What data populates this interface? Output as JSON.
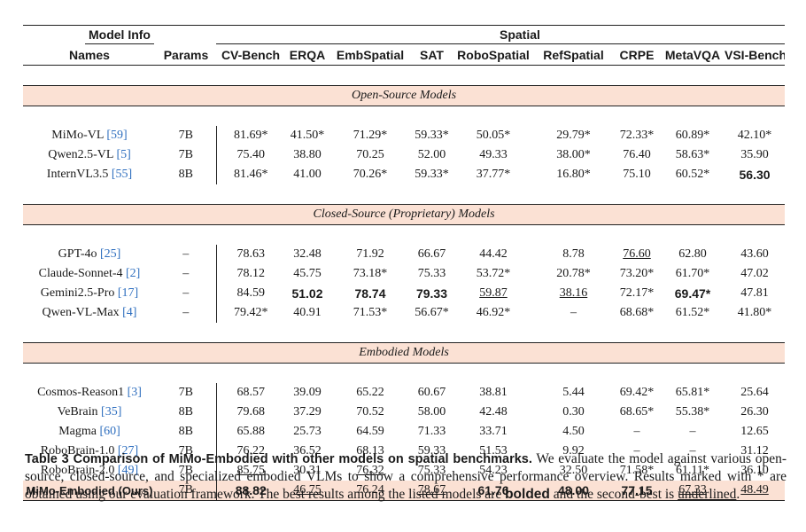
{
  "table": {
    "group_headers": {
      "model_info": "Model Info",
      "spatial": "Spatial"
    },
    "columns": [
      "Names",
      "Params",
      "CV-Bench",
      "ERQA",
      "EmbSpatial",
      "SAT",
      "RoboSpatial",
      "RefSpatial",
      "CRPE",
      "MetaVQA",
      "VSI-Bench"
    ],
    "sections": [
      {
        "title": "Open-Source Models",
        "rows": [
          {
            "name": "MiMo-VL",
            "ref": "[59]",
            "params": "7B",
            "values": [
              "81.69*",
              "41.50*",
              "71.29*",
              "59.33*",
              "50.05*",
              "29.79*",
              "72.33*",
              "60.89*",
              "42.10*"
            ]
          },
          {
            "name": "Qwen2.5-VL",
            "ref": "[5]",
            "params": "7B",
            "values": [
              "75.40",
              "38.80",
              "70.25",
              "52.00",
              "49.33",
              "38.00*",
              "76.40",
              "58.63*",
              "35.90"
            ]
          },
          {
            "name": "InternVL3.5",
            "ref": "[55]",
            "params": "8B",
            "values": [
              "81.46*",
              "41.00",
              "70.26*",
              "59.33*",
              "37.77*",
              "16.80*",
              "75.10",
              "60.52*",
              "56.30"
            ]
          }
        ]
      },
      {
        "title": "Closed-Source (Proprietary) Models",
        "rows": [
          {
            "name": "GPT-4o",
            "ref": "[25]",
            "params": "–",
            "values": [
              "78.63",
              "32.48",
              "71.92",
              "66.67",
              "44.42",
              "8.78",
              "76.60",
              "62.80",
              "43.60"
            ]
          },
          {
            "name": "Claude-Sonnet-4",
            "ref": "[2]",
            "params": "–",
            "values": [
              "78.12",
              "45.75",
              "73.18*",
              "75.33",
              "53.72*",
              "20.78*",
              "73.20*",
              "61.70*",
              "47.02"
            ]
          },
          {
            "name": "Gemini2.5-Pro",
            "ref": "[17]",
            "params": "–",
            "values": [
              "84.59",
              "51.02",
              "78.74",
              "79.33",
              "59.87",
              "38.16",
              "72.17*",
              "69.47*",
              "47.81"
            ]
          },
          {
            "name": "Qwen-VL-Max",
            "ref": "[4]",
            "params": "–",
            "values": [
              "79.42*",
              "40.91",
              "71.53*",
              "56.67*",
              "46.92*",
              "–",
              "68.68*",
              "61.52*",
              "41.80*"
            ]
          }
        ]
      },
      {
        "title": "Embodied Models",
        "rows": [
          {
            "name": "Cosmos-Reason1",
            "ref": "[3]",
            "params": "7B",
            "values": [
              "68.57",
              "39.09",
              "65.22",
              "60.67",
              "38.81",
              "5.44",
              "69.42*",
              "65.81*",
              "25.64"
            ]
          },
          {
            "name": "VeBrain",
            "ref": "[35]",
            "params": "8B",
            "values": [
              "79.68",
              "37.29",
              "70.52",
              "58.00",
              "42.48",
              "0.30",
              "68.65*",
              "55.38*",
              "26.30"
            ]
          },
          {
            "name": "Magma",
            "ref": "[60]",
            "params": "8B",
            "values": [
              "65.88",
              "25.73",
              "64.59",
              "71.33",
              "33.71",
              "4.50",
              "–",
              "–",
              "12.65"
            ]
          },
          {
            "name": "RoboBrain-1.0",
            "ref": "[27]",
            "params": "7B",
            "values": [
              "76.22",
              "36.52",
              "68.13",
              "59.33",
              "51.53",
              "9.92",
              "–",
              "–",
              "31.12"
            ]
          },
          {
            "name": "RoboBrain-2.0",
            "ref": "[49]",
            "params": "7B",
            "values": [
              "85.75",
              "30.31",
              "76.32",
              "75.33",
              "54.23",
              "32.50",
              "71.58*",
              "61.11*",
              "36.10"
            ]
          },
          {
            "name": "MiMo-Embodied (Ours)",
            "ref": "",
            "params": "7B",
            "values": [
              "88.82",
              "46.75",
              "76.24",
              "78.67",
              "61.76",
              "48.00",
              "77.15",
              "67.33",
              "48.49"
            ]
          }
        ]
      }
    ],
    "bold_cells": [
      [
        0,
        2,
        8
      ],
      [
        1,
        2,
        1
      ],
      [
        1,
        2,
        2
      ],
      [
        1,
        2,
        3
      ],
      [
        1,
        2,
        7
      ],
      [
        2,
        5,
        0
      ],
      [
        2,
        5,
        4
      ],
      [
        2,
        5,
        5
      ],
      [
        2,
        5,
        6
      ]
    ],
    "underline_cells": [
      [
        1,
        0,
        6
      ],
      [
        1,
        2,
        4
      ],
      [
        1,
        2,
        5
      ],
      [
        2,
        4,
        0
      ],
      [
        2,
        4,
        2
      ],
      [
        2,
        5,
        1
      ],
      [
        2,
        5,
        3
      ],
      [
        2,
        5,
        7
      ],
      [
        2,
        5,
        8
      ]
    ],
    "highlight_color": "#fbe1d4",
    "ref_color": "#2f6fbf"
  },
  "caption": {
    "lead": "Table 3  Comparison of MiMo-Embodied with other models on spatial benchmarks.",
    "body1": " We evaluate the model against various open-source, closed-source, and specialized embodied VLMs to show a comprehensive performance overview. Results marked with * are obtained using our evaluation framework. The best results among the listed models are ",
    "bold_word": "bolded",
    "body2": " and the second-best is ",
    "underline_word": "underlined",
    "body3": "."
  }
}
